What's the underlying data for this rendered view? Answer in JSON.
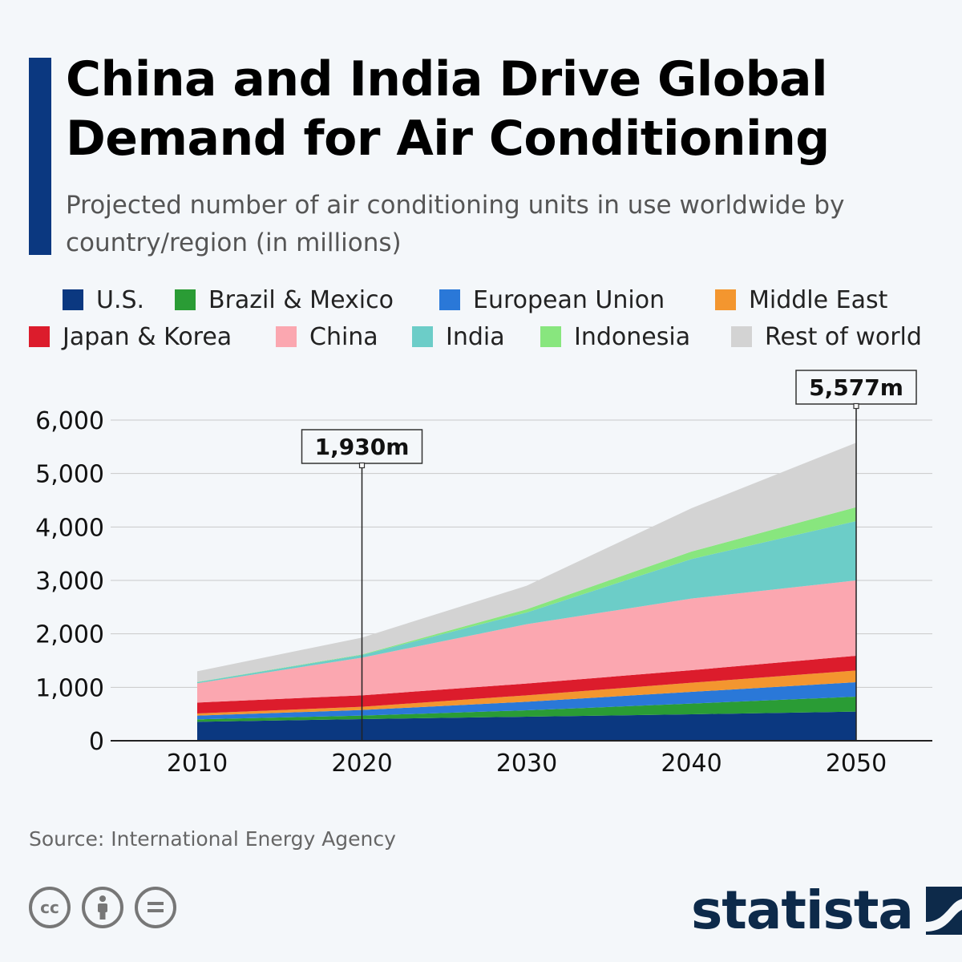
{
  "title": "China and India Drive Global Demand for Air Conditioning",
  "subtitle": "Projected number of air conditioning units in use worldwide by country/region (in millions)",
  "colors": {
    "accent": "#0b3880",
    "text": "#000000"
  },
  "legend": [
    {
      "label": "U.S.",
      "color": "#0b3880"
    },
    {
      "label": "Brazil & Mexico",
      "color": "#2a9c35"
    },
    {
      "label": "European Union",
      "color": "#2a78d8"
    },
    {
      "label": "Middle East",
      "color": "#f3962f"
    },
    {
      "label": "Japan & Korea",
      "color": "#dc1c2c"
    },
    {
      "label": "China",
      "color": "#fba7b0"
    },
    {
      "label": "India",
      "color": "#6ccdc8"
    },
    {
      "label": "Indonesia",
      "color": "#88e67e"
    },
    {
      "label": "Rest of world",
      "color": "#d3d3d3"
    }
  ],
  "chart_data": {
    "type": "area",
    "stacked": true,
    "x": [
      2010,
      2020,
      2030,
      2040,
      2050
    ],
    "ylim": [
      0,
      6000
    ],
    "yticks": [
      "0",
      "1,000",
      "2,000",
      "3,000",
      "4,000",
      "5,000",
      "6,000"
    ],
    "xticks": [
      "2010",
      "2020",
      "2030",
      "2040",
      "2050"
    ],
    "series": [
      {
        "name": "U.S.",
        "values": [
          355,
          405,
          450,
          495,
          545
        ]
      },
      {
        "name": "Brazil & Mexico",
        "values": [
          45,
          65,
          120,
          200,
          280
        ]
      },
      {
        "name": "European Union",
        "values": [
          70,
          105,
          160,
          220,
          270
        ]
      },
      {
        "name": "Middle East",
        "values": [
          40,
          60,
          120,
          170,
          220
        ]
      },
      {
        "name": "Japan & Korea",
        "values": [
          205,
          215,
          220,
          235,
          275
        ]
      },
      {
        "name": "China",
        "values": [
          360,
          705,
          1110,
          1340,
          1410
        ]
      },
      {
        "name": "India",
        "values": [
          20,
          50,
          220,
          740,
          1110
        ]
      },
      {
        "name": "Indonesia",
        "values": [
          5,
          10,
          60,
          140,
          260
        ]
      },
      {
        "name": "Rest of world",
        "values": [
          200,
          315,
          440,
          810,
          1207
        ]
      }
    ],
    "annotations": [
      {
        "x": 2020,
        "label": "1,930m",
        "value": 1930
      },
      {
        "x": 2050,
        "label": "5,577m",
        "value": 5577
      }
    ]
  },
  "source": "Source: International Energy Agency",
  "brand": "statista"
}
